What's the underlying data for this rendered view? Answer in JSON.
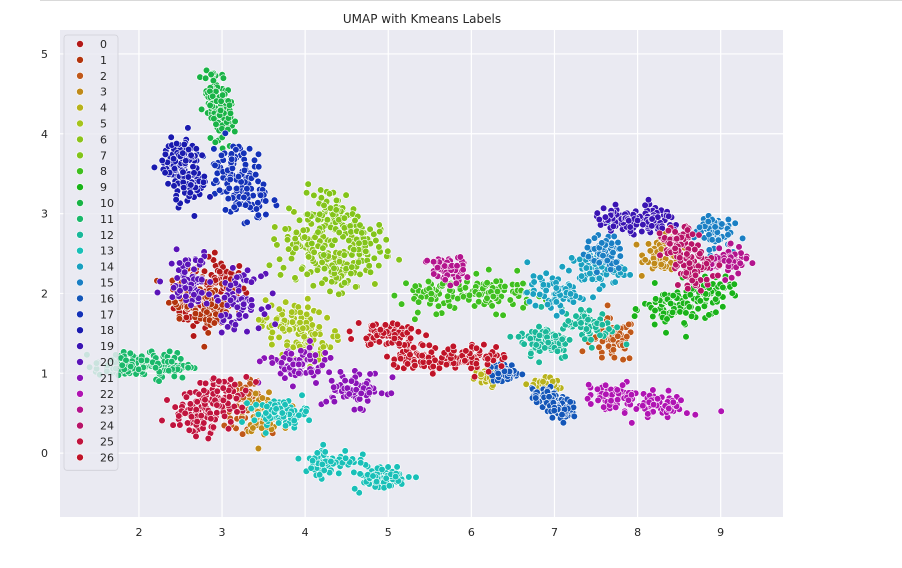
{
  "chart_data": {
    "type": "scatter",
    "title": "UMAP with Kmeans Labels",
    "xlabel": "",
    "ylabel": "",
    "xlim": [
      1.05,
      9.75
    ],
    "ylim": [
      -0.8,
      5.3
    ],
    "xticks": [
      "2",
      "3",
      "4",
      "5",
      "6",
      "7",
      "8",
      "9"
    ],
    "yticks": [
      "0",
      "1",
      "2",
      "3",
      "4",
      "5"
    ],
    "grid": true,
    "legend_position": "top-left",
    "background": "#eaeaf2",
    "series": [
      {
        "name": "0",
        "color": "#b31818",
        "centers": [
          [
            2.7,
            1.9
          ],
          [
            3.0,
            2.1
          ]
        ],
        "spread": [
          0.25,
          0.3
        ]
      },
      {
        "name": "1",
        "color": "#b3340d",
        "centers": [
          [
            2.6,
            2.0
          ],
          [
            2.9,
            1.8
          ]
        ],
        "spread": [
          0.2,
          0.25
        ]
      },
      {
        "name": "2",
        "color": "#c0581a",
        "centers": [
          [
            3.3,
            0.6
          ],
          [
            7.7,
            1.4
          ]
        ],
        "spread": [
          0.25,
          0.25
        ]
      },
      {
        "name": "3",
        "color": "#c08a1a",
        "centers": [
          [
            8.3,
            2.5
          ],
          [
            3.5,
            0.5
          ]
        ],
        "spread": [
          0.2,
          0.2
        ]
      },
      {
        "name": "4",
        "color": "#b8b21c",
        "centers": [
          [
            6.2,
            0.95
          ],
          [
            6.9,
            0.85
          ]
        ],
        "spread": [
          0.15,
          0.1
        ]
      },
      {
        "name": "5",
        "color": "#a6c41d",
        "centers": [
          [
            4.0,
            1.4
          ],
          [
            3.8,
            1.6
          ]
        ],
        "spread": [
          0.3,
          0.3
        ]
      },
      {
        "name": "6",
        "color": "#8cc31b",
        "centers": [
          [
            4.4,
            2.3
          ],
          [
            4.0,
            2.6
          ]
        ],
        "spread": [
          0.35,
          0.35
        ]
      },
      {
        "name": "7",
        "color": "#83c41a",
        "centers": [
          [
            4.3,
            3.0
          ],
          [
            4.7,
            2.6
          ]
        ],
        "spread": [
          0.3,
          0.3
        ]
      },
      {
        "name": "8",
        "color": "#3fbf1f",
        "centers": [
          [
            5.6,
            2.0
          ],
          [
            6.3,
            2.0
          ]
        ],
        "spread": [
          0.4,
          0.2
        ]
      },
      {
        "name": "9",
        "color": "#19b319",
        "centers": [
          [
            8.4,
            1.8
          ],
          [
            8.8,
            2.0
          ]
        ],
        "spread": [
          0.3,
          0.25
        ]
      },
      {
        "name": "10",
        "color": "#19b346",
        "centers": [
          [
            2.9,
            4.5
          ],
          [
            3.0,
            4.2
          ]
        ],
        "spread": [
          0.1,
          0.3
        ]
      },
      {
        "name": "11",
        "color": "#1ab86a",
        "centers": [
          [
            1.8,
            1.1
          ],
          [
            2.3,
            1.1
          ]
        ],
        "spread": [
          0.3,
          0.15
        ]
      },
      {
        "name": "12",
        "color": "#1ab89a",
        "centers": [
          [
            6.9,
            1.4
          ],
          [
            7.4,
            1.6
          ]
        ],
        "spread": [
          0.3,
          0.2
        ]
      },
      {
        "name": "13",
        "color": "#19c0b8",
        "centers": [
          [
            4.3,
            -0.1
          ],
          [
            4.9,
            -0.3
          ],
          [
            3.7,
            0.5
          ]
        ],
        "spread": [
          0.3,
          0.15
        ]
      },
      {
        "name": "14",
        "color": "#1aa0c0",
        "centers": [
          [
            7.5,
            2.3
          ],
          [
            7.0,
            2.0
          ]
        ],
        "spread": [
          0.3,
          0.2
        ]
      },
      {
        "name": "15",
        "color": "#1a7fc4",
        "centers": [
          [
            8.9,
            2.8
          ],
          [
            7.6,
            2.5
          ]
        ],
        "spread": [
          0.2,
          0.2
        ]
      },
      {
        "name": "16",
        "color": "#1456b8",
        "centers": [
          [
            6.9,
            0.7
          ],
          [
            7.1,
            0.55
          ],
          [
            6.4,
            1.0
          ]
        ],
        "spread": [
          0.15,
          0.1
        ]
      },
      {
        "name": "17",
        "color": "#1432b8",
        "centers": [
          [
            3.1,
            3.6
          ],
          [
            3.3,
            3.2
          ]
        ],
        "spread": [
          0.25,
          0.3
        ]
      },
      {
        "name": "18",
        "color": "#1a1aaf",
        "centers": [
          [
            2.6,
            3.4
          ],
          [
            2.5,
            3.7
          ]
        ],
        "spread": [
          0.2,
          0.25
        ]
      },
      {
        "name": "19",
        "color": "#3a14b3",
        "centers": [
          [
            8.2,
            2.9
          ],
          [
            7.8,
            2.9
          ]
        ],
        "spread": [
          0.3,
          0.15
        ]
      },
      {
        "name": "20",
        "color": "#5a14b8",
        "centers": [
          [
            2.6,
            2.2
          ],
          [
            3.2,
            1.9
          ]
        ],
        "spread": [
          0.25,
          0.3
        ]
      },
      {
        "name": "21",
        "color": "#8a14b8",
        "centers": [
          [
            4.6,
            0.8
          ],
          [
            3.9,
            1.1
          ]
        ],
        "spread": [
          0.35,
          0.2
        ]
      },
      {
        "name": "22",
        "color": "#b014b3",
        "centers": [
          [
            7.7,
            0.7
          ],
          [
            8.3,
            0.6
          ]
        ],
        "spread": [
          0.3,
          0.15
        ]
      },
      {
        "name": "23",
        "color": "#b3148e",
        "centers": [
          [
            9.1,
            2.4
          ],
          [
            5.7,
            2.3
          ]
        ],
        "spread": [
          0.2,
          0.15
        ]
      },
      {
        "name": "24",
        "color": "#b81468",
        "centers": [
          [
            8.7,
            2.3
          ],
          [
            8.5,
            2.6
          ]
        ],
        "spread": [
          0.2,
          0.2
        ]
      },
      {
        "name": "25",
        "color": "#c0143e",
        "centers": [
          [
            2.7,
            0.5
          ],
          [
            3.0,
            0.7
          ]
        ],
        "spread": [
          0.3,
          0.25
        ]
      },
      {
        "name": "26",
        "color": "#c01428",
        "centers": [
          [
            5.4,
            1.2
          ],
          [
            6.0,
            1.2
          ],
          [
            5.0,
            1.5
          ]
        ],
        "spread": [
          0.35,
          0.15
        ]
      }
    ]
  }
}
